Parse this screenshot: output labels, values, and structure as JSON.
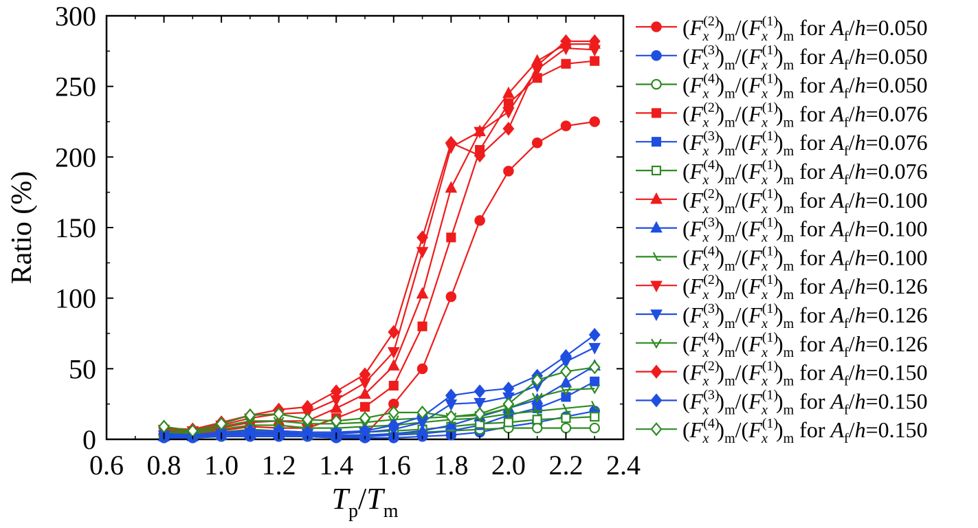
{
  "chart_data": {
    "type": "line",
    "xlabel": {
      "main": "T",
      "sub": "p",
      "sep": "/",
      "main2": "T",
      "sub2": "m"
    },
    "ylabel": "Ratio (%)",
    "xlim": [
      0.6,
      2.4
    ],
    "ylim": [
      0,
      300
    ],
    "xticks": [
      "0.6",
      "0.8",
      "1.0",
      "1.2",
      "1.4",
      "1.6",
      "1.8",
      "2.0",
      "2.2",
      "2.4"
    ],
    "yticks": [
      "0",
      "50",
      "100",
      "150",
      "200",
      "250",
      "300"
    ],
    "grid": false,
    "legend_position": "right",
    "legend_label_parts": {
      "sup1": "(1)",
      "sub_x": "x",
      "sub_m": "m",
      "for": "for",
      "A": "A",
      "f": "f",
      "h": "h"
    },
    "x": [
      0.8,
      0.9,
      1.0,
      1.1,
      1.2,
      1.3,
      1.4,
      1.5,
      1.6,
      1.7,
      1.8,
      1.9,
      2.0,
      2.1,
      2.2,
      2.3
    ],
    "colors": {
      "ratio2": "#ee1c1c",
      "ratio3": "#1f4fe0",
      "ratio4": "#2e8b22"
    },
    "series": [
      {
        "ratio": "(2)",
        "af": "0.050",
        "color": "#ee1c1c",
        "marker": "circle",
        "filled": true,
        "values": [
          4,
          3,
          4,
          5,
          4,
          4,
          3,
          3,
          25,
          50,
          101,
          155,
          190,
          210,
          222,
          225
        ]
      },
      {
        "ratio": "(3)",
        "af": "0.050",
        "color": "#1f4fe0",
        "marker": "circle",
        "filled": true,
        "values": [
          1,
          1,
          2,
          2,
          2,
          2,
          1,
          1,
          1,
          2,
          3,
          5,
          9,
          12,
          16,
          20
        ]
      },
      {
        "ratio": "(4)",
        "af": "0.050",
        "color": "#2e8b22",
        "marker": "circle",
        "filled": false,
        "values": [
          2,
          2,
          3,
          4,
          4,
          3,
          3,
          3,
          4,
          5,
          6,
          7,
          8,
          8,
          8,
          8
        ]
      },
      {
        "ratio": "(2)",
        "af": "0.076",
        "color": "#ee1c1c",
        "marker": "square",
        "filled": true,
        "values": [
          5,
          4,
          6,
          9,
          8,
          8,
          15,
          23,
          38,
          80,
          143,
          205,
          238,
          256,
          266,
          268
        ]
      },
      {
        "ratio": "(3)",
        "af": "0.076",
        "color": "#1f4fe0",
        "marker": "square",
        "filled": true,
        "values": [
          2,
          2,
          3,
          3,
          3,
          3,
          2,
          2,
          3,
          4,
          6,
          10,
          17,
          22,
          30,
          41
        ]
      },
      {
        "ratio": "(4)",
        "af": "0.076",
        "color": "#2e8b22",
        "marker": "square",
        "filled": false,
        "values": [
          4,
          3,
          5,
          7,
          6,
          5,
          5,
          5,
          6,
          7,
          9,
          11,
          12,
          14,
          15,
          16
        ]
      },
      {
        "ratio": "(2)",
        "af": "0.100",
        "color": "#ee1c1c",
        "marker": "triangle-up",
        "filled": true,
        "values": [
          6,
          5,
          8,
          12,
          13,
          13,
          22,
          32,
          52,
          103,
          178,
          218,
          245,
          268,
          280,
          280
        ]
      },
      {
        "ratio": "(3)",
        "af": "0.100",
        "color": "#1f4fe0",
        "marker": "triangle-up",
        "filled": true,
        "values": [
          2,
          2,
          3,
          4,
          4,
          3,
          3,
          3,
          4,
          6,
          10,
          16,
          22,
          28,
          40,
          52
        ]
      },
      {
        "ratio": "(4)",
        "af": "0.100",
        "color": "#2e8b22",
        "marker": "half-triangle",
        "filled": false,
        "values": [
          5,
          4,
          7,
          10,
          10,
          8,
          8,
          9,
          10,
          12,
          14,
          15,
          18,
          20,
          22,
          24
        ]
      },
      {
        "ratio": "(2)",
        "af": "0.126",
        "color": "#ee1c1c",
        "marker": "triangle-down",
        "filled": true,
        "values": [
          7,
          6,
          10,
          15,
          18,
          19,
          28,
          40,
          62,
          133,
          207,
          218,
          232,
          262,
          277,
          276
        ]
      },
      {
        "ratio": "(3)",
        "af": "0.126",
        "color": "#1f4fe0",
        "marker": "triangle-down",
        "filled": true,
        "values": [
          3,
          3,
          4,
          5,
          5,
          4,
          4,
          5,
          7,
          12,
          25,
          26,
          30,
          38,
          55,
          65
        ]
      },
      {
        "ratio": "(4)",
        "af": "0.126",
        "color": "#2e8b22",
        "marker": "check",
        "filled": false,
        "values": [
          7,
          5,
          9,
          13,
          13,
          11,
          11,
          12,
          14,
          15,
          16,
          17,
          22,
          30,
          35,
          36
        ]
      },
      {
        "ratio": "(2)",
        "af": "0.150",
        "color": "#ee1c1c",
        "marker": "diamond",
        "filled": true,
        "values": [
          8,
          7,
          12,
          17,
          21,
          23,
          34,
          46,
          76,
          143,
          210,
          201,
          220,
          265,
          282,
          282
        ]
      },
      {
        "ratio": "(3)",
        "af": "0.150",
        "color": "#1f4fe0",
        "marker": "diamond",
        "filled": true,
        "values": [
          4,
          3,
          5,
          6,
          6,
          5,
          5,
          6,
          10,
          16,
          31,
          34,
          36,
          45,
          59,
          74
        ]
      },
      {
        "ratio": "(4)",
        "af": "0.150",
        "color": "#2e8b22",
        "marker": "diamond",
        "filled": false,
        "values": [
          9,
          6,
          11,
          17,
          18,
          14,
          13,
          15,
          19,
          19,
          16,
          18,
          25,
          42,
          48,
          51
        ]
      }
    ]
  }
}
